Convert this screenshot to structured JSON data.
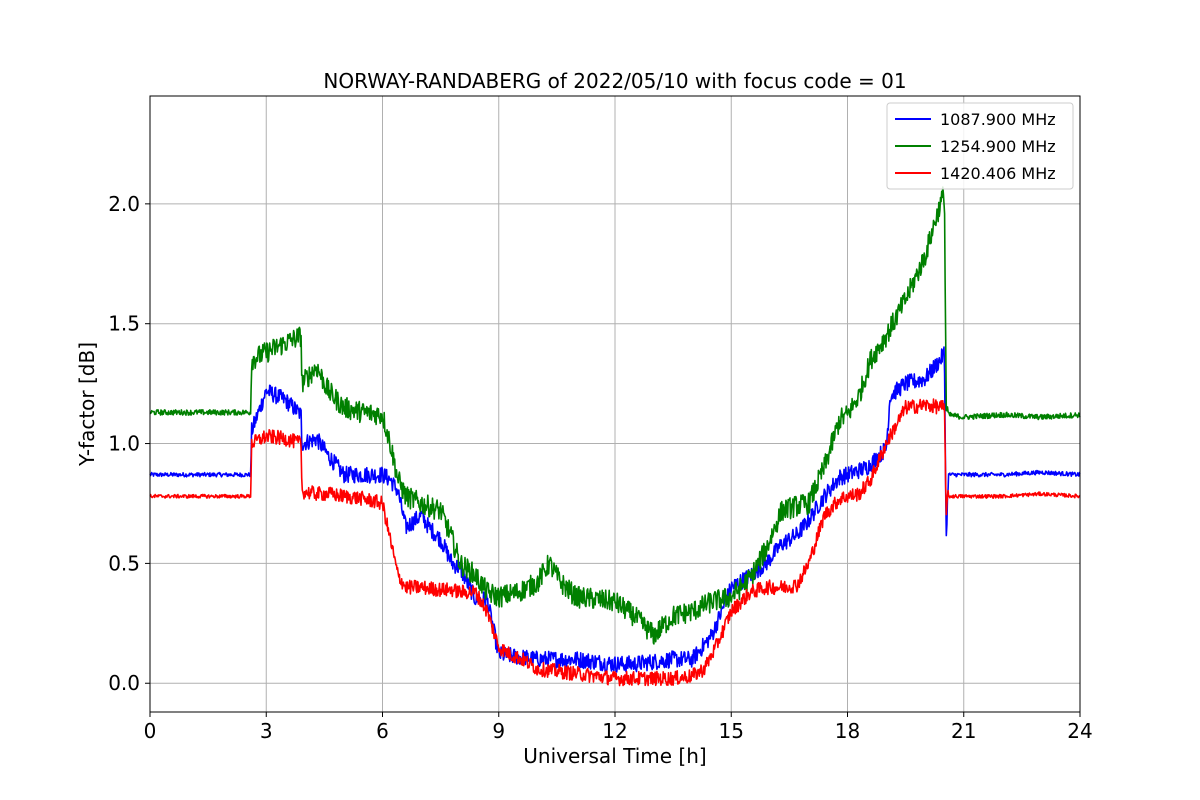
{
  "chart_data": {
    "type": "line",
    "title": "NORWAY-RANDABERG of 2022/05/10 with focus code = 01",
    "xlabel": "Universal Time [h]",
    "ylabel": "Y-factor [dB]",
    "xlim": [
      0,
      24
    ],
    "ylim": [
      -0.12,
      2.45
    ],
    "xticks": [
      0,
      3,
      6,
      9,
      12,
      15,
      18,
      21,
      24
    ],
    "yticks": [
      0.0,
      0.5,
      1.0,
      1.5,
      2.0
    ],
    "xtick_labels": [
      "0",
      "3",
      "6",
      "9",
      "12",
      "15",
      "18",
      "21",
      "24"
    ],
    "ytick_labels": [
      "0.0",
      "0.5",
      "1.0",
      "1.5",
      "2.0"
    ],
    "grid": true,
    "legend_position": "top-right",
    "series": [
      {
        "name": "1087.900 MHz",
        "color": "#0000ff",
        "noise": 0.035,
        "x": [
          0,
          2.6,
          2.62,
          3.0,
          3.5,
          3.9,
          3.92,
          4.3,
          4.6,
          5.0,
          5.5,
          6.0,
          6.2,
          6.4,
          6.6,
          7.0,
          7.2,
          7.5,
          7.8,
          8.0,
          8.4,
          8.7,
          9.0,
          9.5,
          10.0,
          10.5,
          11.0,
          11.5,
          12.0,
          12.5,
          13.0,
          13.5,
          14.0,
          14.5,
          15.0,
          15.5,
          15.9,
          16.3,
          16.7,
          17.0,
          17.4,
          17.8,
          18.0,
          18.5,
          19.0,
          19.1,
          19.5,
          20.0,
          20.4,
          20.5,
          20.55,
          20.6,
          21.0,
          22.0,
          23.0,
          24.0
        ],
        "y": [
          0.87,
          0.87,
          1.05,
          1.22,
          1.18,
          1.12,
          1.0,
          1.02,
          0.95,
          0.87,
          0.87,
          0.87,
          0.85,
          0.8,
          0.65,
          0.7,
          0.65,
          0.6,
          0.5,
          0.48,
          0.35,
          0.35,
          0.12,
          0.11,
          0.1,
          0.1,
          0.1,
          0.09,
          0.08,
          0.08,
          0.09,
          0.1,
          0.1,
          0.2,
          0.4,
          0.45,
          0.5,
          0.58,
          0.62,
          0.68,
          0.78,
          0.86,
          0.87,
          0.9,
          0.98,
          1.2,
          1.25,
          1.27,
          1.35,
          1.38,
          0.6,
          0.87,
          0.87,
          0.87,
          0.88,
          0.87
        ]
      },
      {
        "name": "1254.900 MHz",
        "color": "#008000",
        "noise": 0.045,
        "x": [
          0,
          2.6,
          2.62,
          3.0,
          3.5,
          3.9,
          3.92,
          4.3,
          4.6,
          5.0,
          5.5,
          6.0,
          6.2,
          6.4,
          6.6,
          7.0,
          7.5,
          7.8,
          8.0,
          8.4,
          8.7,
          9.0,
          9.5,
          10.0,
          10.3,
          10.6,
          11.0,
          11.5,
          12.0,
          12.5,
          13.0,
          13.5,
          14.0,
          14.5,
          15.0,
          15.5,
          15.9,
          16.3,
          16.7,
          17.0,
          17.4,
          17.8,
          18.0,
          18.3,
          18.6,
          19.0,
          19.5,
          20.0,
          20.3,
          20.5,
          20.55,
          20.6,
          21.0,
          22.0,
          23.0,
          24.0
        ],
        "y": [
          1.13,
          1.13,
          1.35,
          1.38,
          1.42,
          1.45,
          1.25,
          1.32,
          1.22,
          1.15,
          1.13,
          1.12,
          1.0,
          0.85,
          0.78,
          0.75,
          0.72,
          0.6,
          0.5,
          0.45,
          0.38,
          0.36,
          0.38,
          0.42,
          0.5,
          0.42,
          0.36,
          0.35,
          0.34,
          0.28,
          0.2,
          0.28,
          0.3,
          0.34,
          0.36,
          0.44,
          0.56,
          0.72,
          0.74,
          0.75,
          0.9,
          1.1,
          1.12,
          1.2,
          1.35,
          1.45,
          1.6,
          1.78,
          1.95,
          2.05,
          1.15,
          1.12,
          1.11,
          1.12,
          1.11,
          1.12
        ]
      },
      {
        "name": "1420.406 MHz",
        "color": "#ff0000",
        "noise": 0.03,
        "x": [
          0,
          2.6,
          2.62,
          3.0,
          3.5,
          3.9,
          3.92,
          4.3,
          4.6,
          5.0,
          5.5,
          6.0,
          6.2,
          6.4,
          6.6,
          7.0,
          7.5,
          7.8,
          8.0,
          8.4,
          8.7,
          9.0,
          9.3,
          9.6,
          10.0,
          10.5,
          11.0,
          11.5,
          12.0,
          12.5,
          13.0,
          13.5,
          14.0,
          14.3,
          14.6,
          15.0,
          15.5,
          15.9,
          16.3,
          16.7,
          17.0,
          17.4,
          17.8,
          18.0,
          18.3,
          18.6,
          19.0,
          19.5,
          20.0,
          20.5,
          20.55,
          20.6,
          21.0,
          22.0,
          23.0,
          24.0
        ],
        "y": [
          0.78,
          0.78,
          1.0,
          1.03,
          1.02,
          1.0,
          0.8,
          0.79,
          0.79,
          0.78,
          0.77,
          0.75,
          0.6,
          0.45,
          0.4,
          0.4,
          0.39,
          0.39,
          0.38,
          0.38,
          0.3,
          0.15,
          0.12,
          0.1,
          0.06,
          0.05,
          0.04,
          0.03,
          0.02,
          0.02,
          0.02,
          0.02,
          0.03,
          0.06,
          0.15,
          0.3,
          0.38,
          0.4,
          0.4,
          0.41,
          0.5,
          0.7,
          0.77,
          0.78,
          0.79,
          0.85,
          1.0,
          1.15,
          1.16,
          1.15,
          0.72,
          0.78,
          0.78,
          0.78,
          0.79,
          0.78
        ]
      }
    ]
  }
}
